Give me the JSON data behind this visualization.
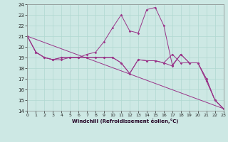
{
  "xlabel": "Windchill (Refroidissement éolien,°C)",
  "background_color": "#cde8e4",
  "grid_color": "#b0d8d0",
  "line_color": "#993388",
  "ylim": [
    14,
    24
  ],
  "xlim": [
    0,
    23
  ],
  "yticks": [
    14,
    15,
    16,
    17,
    18,
    19,
    20,
    21,
    22,
    23,
    24
  ],
  "xticks": [
    0,
    1,
    2,
    3,
    4,
    5,
    6,
    7,
    8,
    9,
    10,
    11,
    12,
    13,
    14,
    15,
    16,
    17,
    18,
    19,
    20,
    21,
    22,
    23
  ],
  "series": [
    {
      "x": [
        0,
        1,
        2,
        3,
        4,
        5,
        6,
        7,
        8,
        9,
        10,
        11,
        12,
        13,
        14,
        15,
        16,
        17,
        18,
        19,
        20,
        21,
        22,
        23
      ],
      "y": [
        21.0,
        19.5,
        19.0,
        18.8,
        18.8,
        19.0,
        19.0,
        19.3,
        19.5,
        20.5,
        21.8,
        23.0,
        21.5,
        21.3,
        23.5,
        23.7,
        22.0,
        18.3,
        19.3,
        18.5,
        18.5,
        16.8,
        15.0,
        14.2
      ]
    },
    {
      "x": [
        0,
        23
      ],
      "y": [
        21.0,
        14.2
      ]
    },
    {
      "x": [
        0,
        1,
        2,
        3,
        4,
        5,
        6,
        7,
        8,
        9,
        10,
        11,
        12,
        13,
        14,
        15,
        16,
        17,
        18,
        19,
        20,
        21,
        22,
        23
      ],
      "y": [
        21.0,
        19.5,
        19.0,
        18.8,
        19.0,
        19.0,
        19.0,
        19.0,
        19.0,
        19.0,
        19.0,
        18.5,
        17.5,
        18.8,
        18.7,
        18.7,
        18.5,
        19.3,
        18.5,
        18.5,
        18.5,
        17.0,
        15.0,
        14.2
      ]
    },
    {
      "x": [
        0,
        1,
        2,
        3,
        4,
        5,
        6,
        7,
        8,
        9,
        10,
        11,
        12,
        13,
        14,
        15,
        16,
        17,
        18,
        19,
        20,
        21,
        22,
        23
      ],
      "y": [
        21.0,
        19.5,
        19.0,
        18.8,
        19.0,
        19.0,
        19.0,
        19.0,
        19.0,
        19.0,
        19.0,
        18.5,
        17.5,
        18.8,
        18.7,
        18.7,
        18.5,
        18.2,
        19.3,
        18.5,
        18.5,
        17.0,
        15.0,
        14.2
      ]
    }
  ]
}
